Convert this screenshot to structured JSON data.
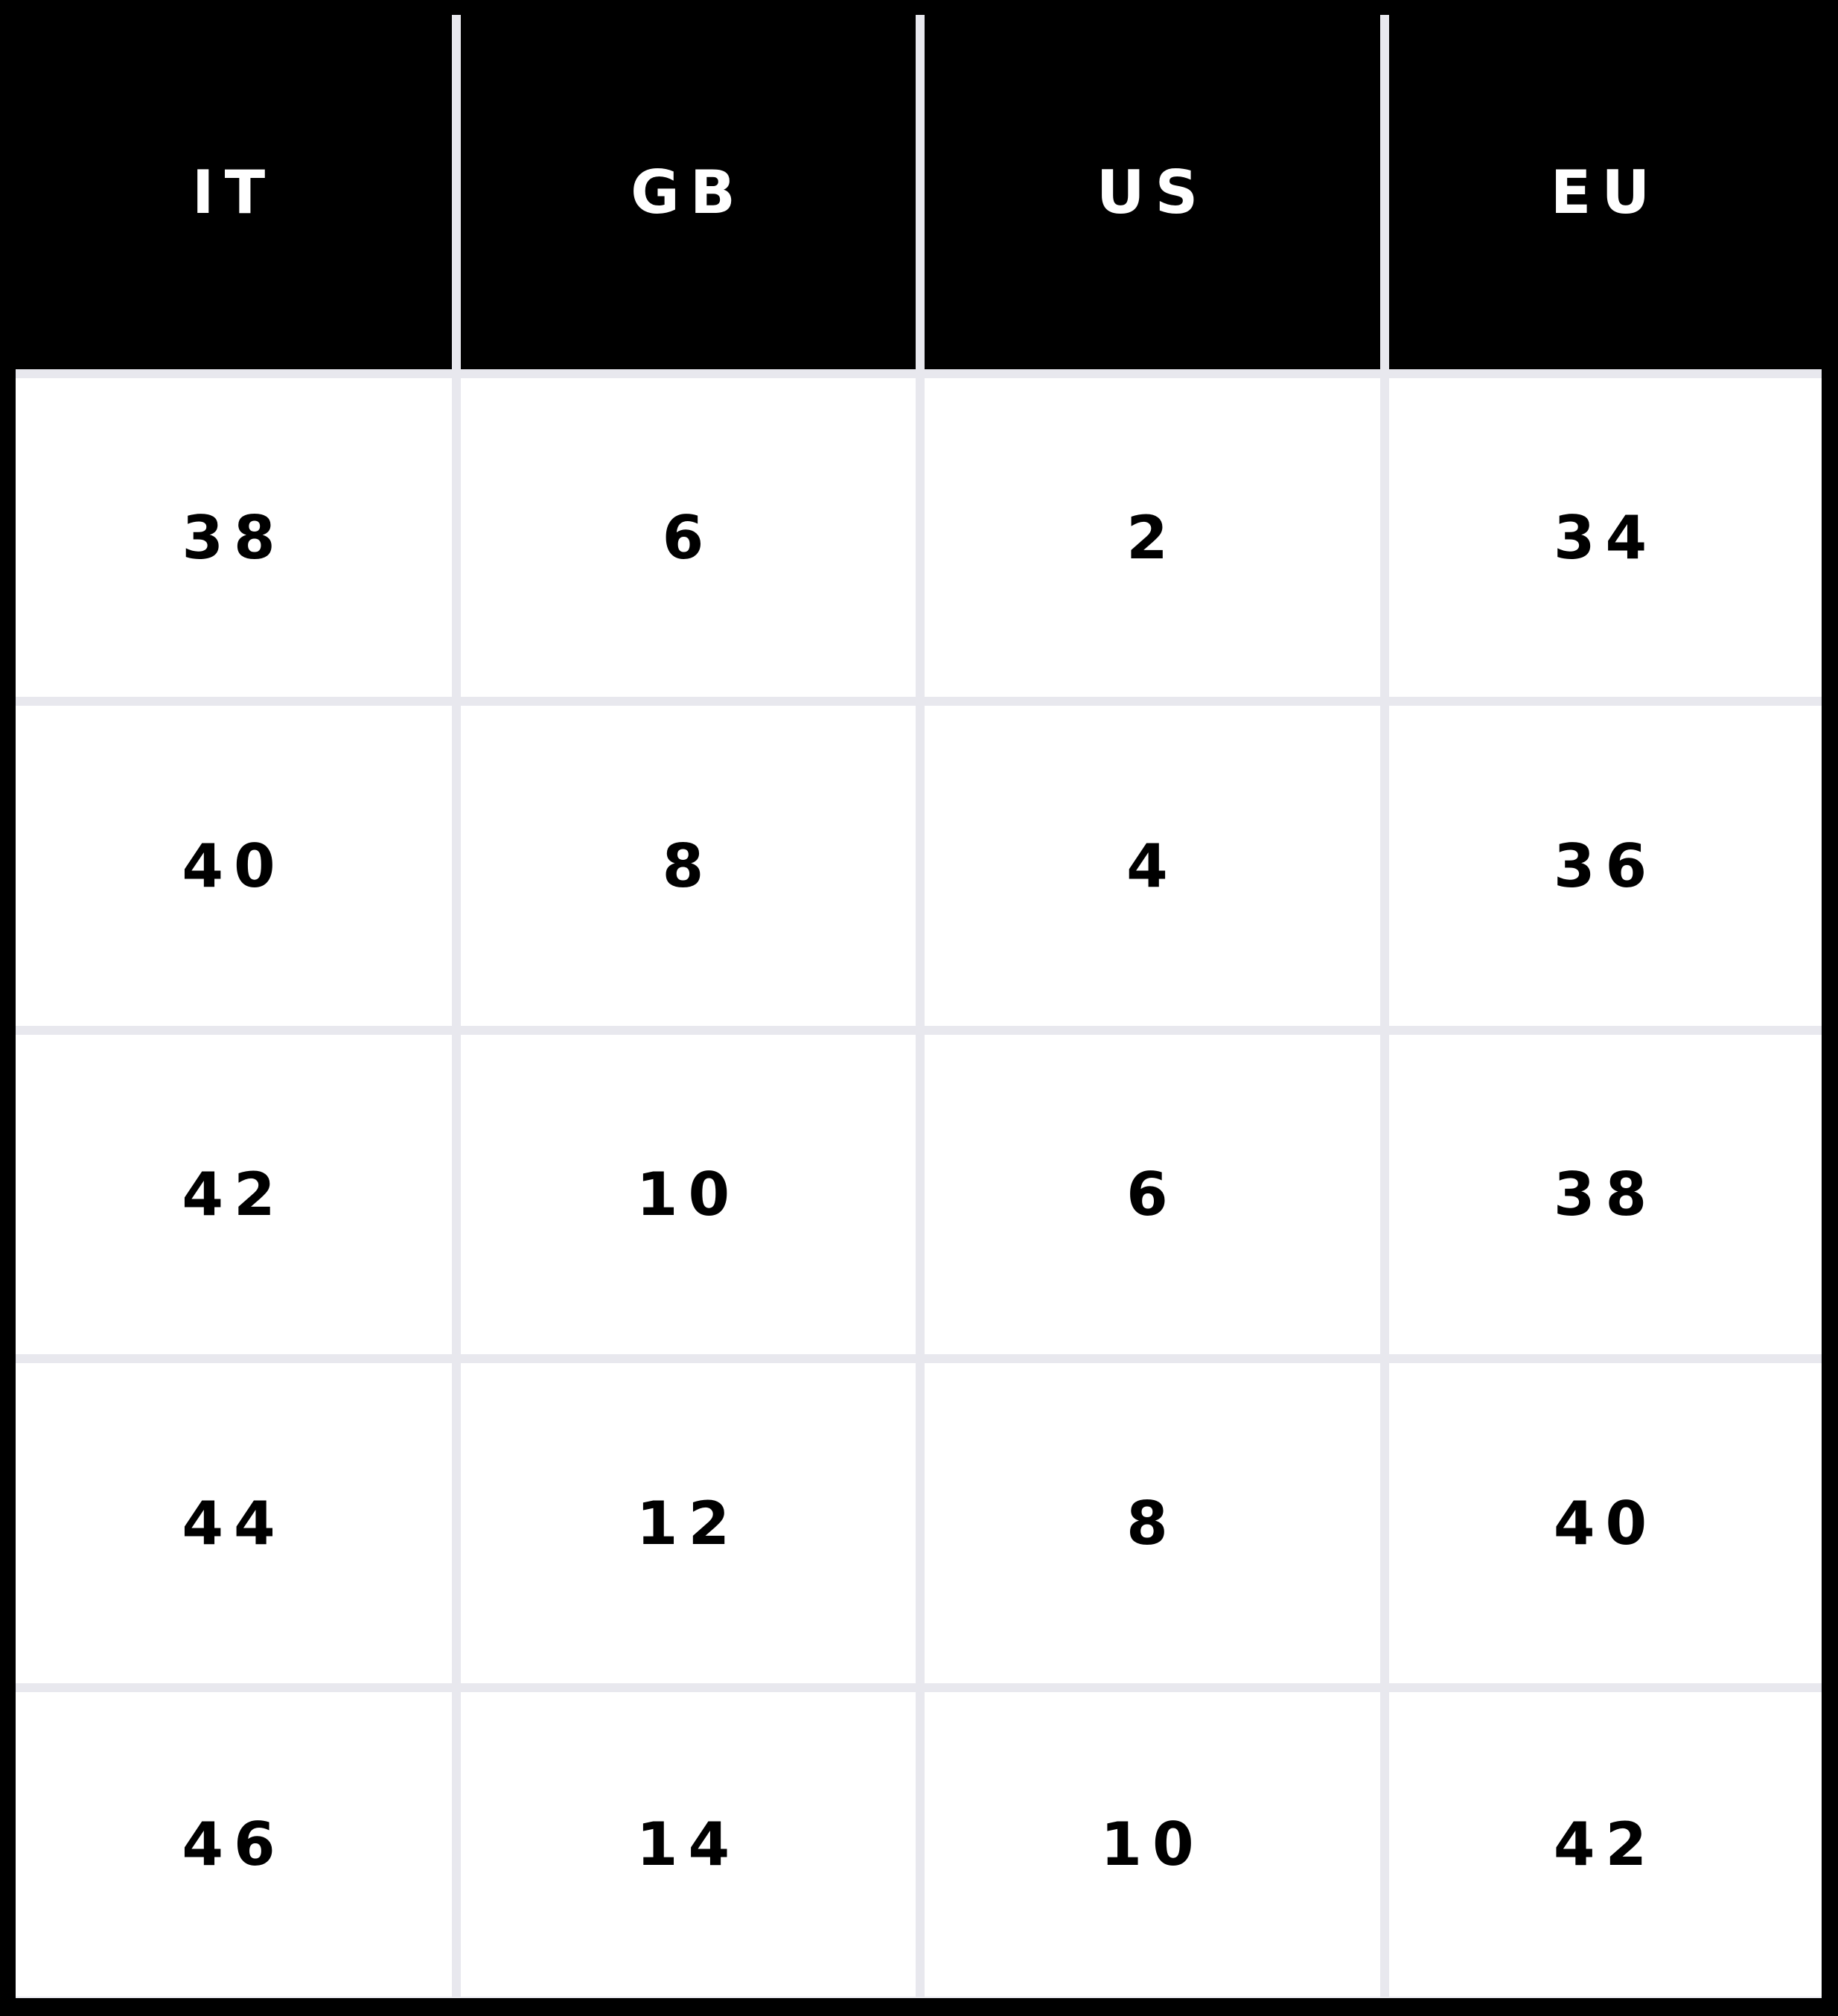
{
  "table": {
    "headers": [
      "IT",
      "GB",
      "US",
      "EU"
    ],
    "rows": [
      [
        "38",
        "6",
        "2",
        "34"
      ],
      [
        "40",
        "8",
        "4",
        "36"
      ],
      [
        "42",
        "10",
        "6",
        "38"
      ],
      [
        "44",
        "12",
        "8",
        "40"
      ],
      [
        "46",
        "14",
        "10",
        "42"
      ]
    ]
  },
  "colors": {
    "header_bg": "#000000",
    "grid_lines": "#e8e8ee",
    "cell_bg": "#ffffff"
  }
}
